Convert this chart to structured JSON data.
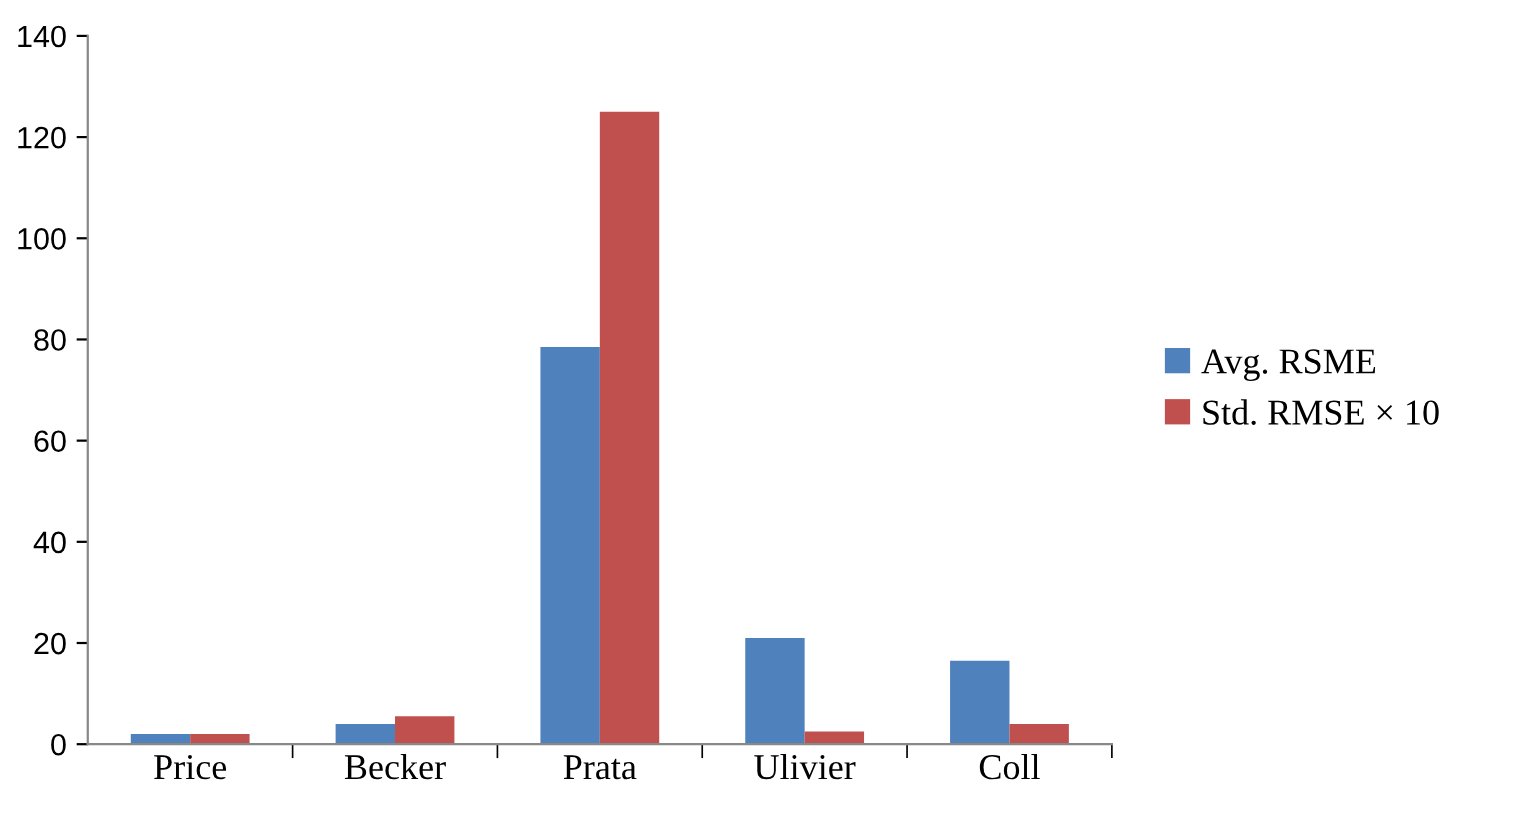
{
  "chart_data": {
    "type": "bar",
    "categories": [
      "Price",
      "Becker",
      "Prata",
      "Ulivier",
      "Coll"
    ],
    "series": [
      {
        "name": "Avg. RSME",
        "color": "#4f81bd",
        "values": [
          2,
          4,
          78.5,
          21,
          16.5
        ]
      },
      {
        "name": "Std. RMSE × 10",
        "color": "#c0504d",
        "values": [
          2,
          5.5,
          125,
          2.5,
          4
        ]
      }
    ],
    "ylim": [
      0,
      140
    ],
    "yticks": [
      0,
      20,
      40,
      60,
      80,
      100,
      120,
      140
    ],
    "grid": false,
    "legend": "right"
  }
}
